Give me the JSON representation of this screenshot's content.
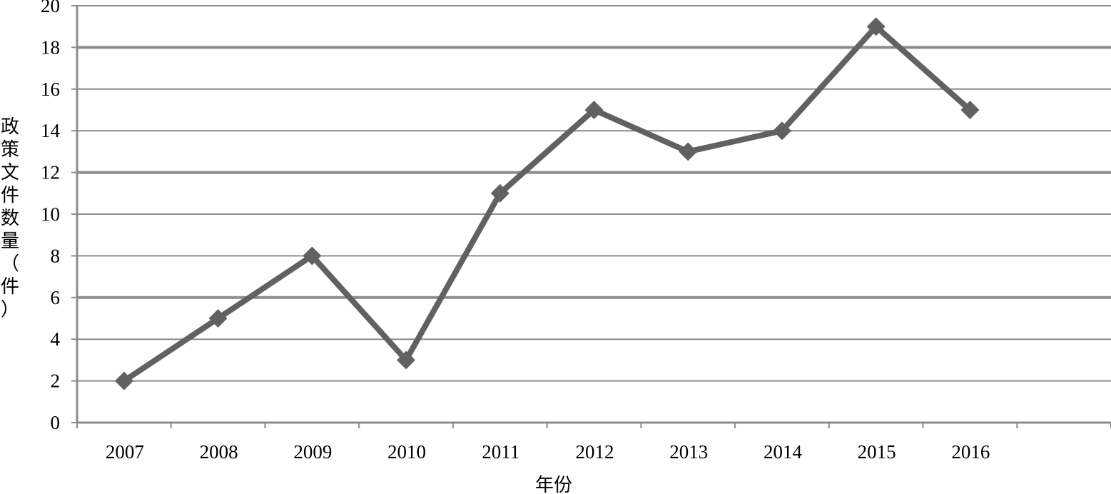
{
  "chart_data": {
    "type": "line",
    "title": "",
    "xlabel": "年份",
    "ylabel": "政策文件数量（件）",
    "categories": [
      "2007",
      "2008",
      "2009",
      "2010",
      "2011",
      "2012",
      "2013",
      "2014",
      "2015",
      "2016"
    ],
    "series": [
      {
        "values": [
          2,
          5,
          8,
          3,
          11,
          15,
          13,
          14,
          19,
          15
        ]
      }
    ],
    "ylim": [
      0,
      20
    ],
    "yticks": [
      "0",
      "2",
      "4",
      "6",
      "8",
      "10",
      "12",
      "14",
      "16",
      "18",
      "20"
    ],
    "grid": true,
    "legend": "none",
    "line_color": "#616161",
    "grid_color": "#8c8c8c"
  }
}
